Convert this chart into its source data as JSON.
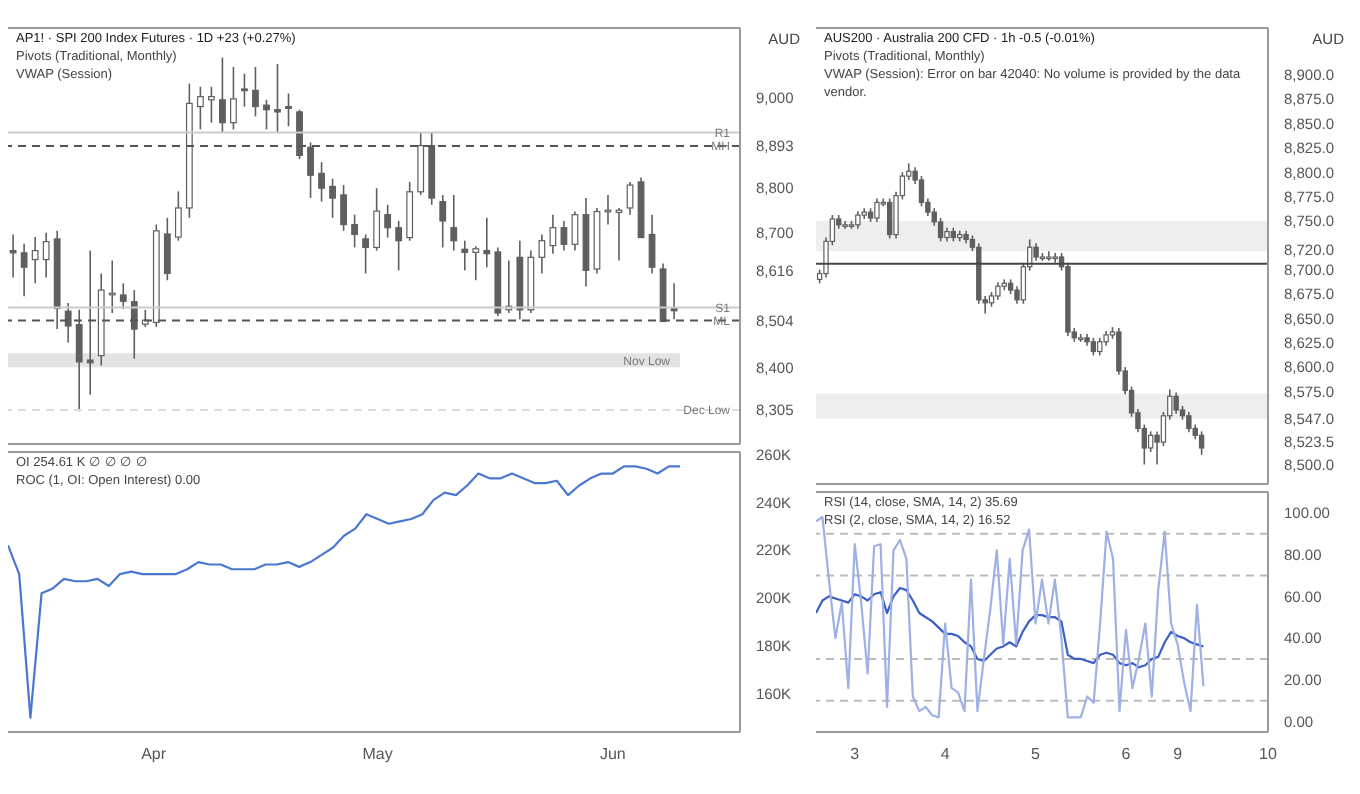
{
  "chart_data": [
    {
      "type": "candlestick",
      "title": "AP1! · SPI 200 Index Futures · 1D  +23 (+0.27%)",
      "annotations": [
        "Pivots (Traditional, Monthly)",
        "VWAP (Session)"
      ],
      "ylabel": "AUD",
      "color": "#5f5f5f",
      "tick_labels": "y",
      "categories": [
        null,
        null,
        null,
        null,
        null,
        null,
        null,
        null,
        null,
        null,
        null,
        null,
        null,
        null,
        null,
        null,
        null,
        null,
        null,
        null,
        null,
        null,
        null,
        null,
        null,
        null,
        null,
        null,
        null,
        null,
        null,
        null,
        null,
        null,
        null,
        null,
        null,
        null,
        null,
        null,
        null,
        null,
        null,
        null,
        null,
        null,
        null,
        null,
        null,
        null,
        null,
        null,
        null,
        null,
        null,
        null,
        null,
        null,
        null,
        null,
        null
      ],
      "ohlc": [
        [
          8660,
          8696,
          8600,
          8655
        ],
        [
          8655,
          8675,
          8558,
          8623
        ],
        [
          8640,
          8690,
          8587,
          8660
        ],
        [
          8640,
          8700,
          8600,
          8680
        ],
        [
          8686,
          8704,
          8485,
          8531
        ],
        [
          8525,
          8543,
          8455,
          8492
        ],
        [
          8495,
          8528,
          8302,
          8412
        ],
        [
          8416,
          8660,
          8339,
          8410
        ],
        [
          8426,
          8609,
          8404,
          8572
        ],
        [
          8562,
          8638,
          8521,
          8565
        ],
        [
          8561,
          8587,
          8530,
          8547
        ],
        [
          8546,
          8572,
          8419,
          8485
        ],
        [
          8496,
          8528,
          8490,
          8505
        ],
        [
          8500,
          8718,
          8490,
          8704
        ],
        [
          8697,
          8733,
          8594,
          8609
        ],
        [
          8690,
          8792,
          8682,
          8755
        ],
        [
          8755,
          9032,
          8733,
          8988
        ],
        [
          8981,
          9025,
          8930,
          9003
        ],
        [
          8996,
          9025,
          8945,
          9003
        ],
        [
          8996,
          9090,
          8923,
          8945
        ],
        [
          8945,
          9069,
          8930,
          8998
        ],
        [
          9020,
          9054,
          8981,
          9017
        ],
        [
          9017,
          9069,
          8959,
          8981
        ],
        [
          8984,
          8996,
          8930,
          8974
        ],
        [
          8974,
          9076,
          8923,
          8969
        ],
        [
          8981,
          9010,
          8937,
          8977
        ],
        [
          8969,
          8974,
          8864,
          8872
        ],
        [
          8890,
          8901,
          8777,
          8828
        ],
        [
          8832,
          8857,
          8769,
          8799
        ],
        [
          8803,
          8820,
          8733,
          8777
        ],
        [
          8784,
          8806,
          8704,
          8718
        ],
        [
          8718,
          8740,
          8667,
          8696
        ],
        [
          8686,
          8696,
          8609,
          8667
        ],
        [
          8667,
          8799,
          8660,
          8748
        ],
        [
          8740,
          8762,
          8689,
          8711
        ],
        [
          8711,
          8726,
          8616,
          8682
        ],
        [
          8689,
          8813,
          8682,
          8791
        ],
        [
          8791,
          8923,
          8784,
          8894
        ],
        [
          8894,
          8923,
          8762,
          8777
        ],
        [
          8769,
          8784,
          8667,
          8726
        ],
        [
          8711,
          8784,
          8660,
          8682
        ],
        [
          8663,
          8682,
          8616,
          8656
        ],
        [
          8656,
          8670,
          8594,
          8664
        ],
        [
          8660,
          8733,
          8623,
          8653
        ],
        [
          8657,
          8667,
          8514,
          8521
        ],
        [
          8528,
          8638,
          8521,
          8536
        ],
        [
          8645,
          8682,
          8507,
          8528
        ],
        [
          8528,
          8660,
          8521,
          8645
        ],
        [
          8645,
          8696,
          8609,
          8682
        ],
        [
          8671,
          8740,
          8653,
          8711
        ],
        [
          8711,
          8726,
          8660,
          8674
        ],
        [
          8674,
          8747,
          8660,
          8740
        ],
        [
          8740,
          8777,
          8580,
          8616
        ],
        [
          8619,
          8755,
          8609,
          8747
        ],
        [
          8747,
          8784,
          8718,
          8750
        ],
        [
          8745,
          8755,
          8638,
          8750
        ],
        [
          8755,
          8813,
          8740,
          8806
        ],
        [
          8813,
          8823,
          8689,
          8689
        ],
        [
          8696,
          8740,
          8609,
          8623
        ],
        [
          8619,
          8631,
          8502,
          8502
        ],
        [
          8531,
          8587,
          8507,
          8526
        ]
      ],
      "ylim": [
        8229,
        9156
      ],
      "yticks": [
        {
          "value": 8305,
          "label": "8,305"
        },
        {
          "value": 8400,
          "label": "8,400"
        },
        {
          "value": 8504,
          "label": "8,504"
        },
        {
          "value": 8616,
          "label": "8,616"
        },
        {
          "value": 8700,
          "label": "8,700"
        },
        {
          "value": 8800,
          "label": "8,800"
        },
        {
          "value": 8893,
          "label": "8,893"
        },
        {
          "value": 9000,
          "label": "9,000"
        }
      ],
      "ref_lines": [
        {
          "axis": "y",
          "value": 8923,
          "label": "R1",
          "color": "#cccccc",
          "line_style": "solid"
        },
        {
          "axis": "y",
          "value": 8893,
          "label": "MH",
          "color": "#555555",
          "line_style": "dashed"
        },
        {
          "axis": "y",
          "value": 8533,
          "label": "S1",
          "color": "#cccccc",
          "line_style": "solid"
        },
        {
          "axis": "y",
          "value": 8504,
          "label": "ML",
          "color": "#555555",
          "line_style": "dashed"
        },
        {
          "axis": "y",
          "value": 8305,
          "label": "Dec Low",
          "color": "#dddddd",
          "line_style": "dashed"
        }
      ],
      "bands": [
        {
          "axis": "y",
          "from": 8400,
          "to": 8431,
          "label": "Nov Low",
          "color": "#e3e3e3"
        }
      ]
    },
    {
      "type": "line",
      "annotations": [
        "OI 254.61 K ∅ ∅ ∅ ∅",
        "ROC (1, OI: Open Interest) 0.00"
      ],
      "categories": [
        null,
        null,
        null,
        null,
        null,
        null,
        null,
        null,
        null,
        null,
        null,
        null,
        null,
        "Apr",
        null,
        null,
        null,
        null,
        null,
        null,
        null,
        null,
        null,
        null,
        null,
        null,
        null,
        null,
        null,
        null,
        null,
        null,
        null,
        "May",
        null,
        null,
        null,
        null,
        null,
        null,
        null,
        null,
        null,
        null,
        null,
        null,
        null,
        null,
        null,
        null,
        null,
        null,
        null,
        null,
        "Jun",
        null,
        null,
        null,
        null,
        null,
        null
      ],
      "series": [
        {
          "color": "#4a78d0",
          "values": [
            222,
            210,
            150,
            202,
            204,
            208,
            207,
            207,
            208,
            205,
            210,
            211,
            210,
            210,
            210,
            210,
            212,
            215,
            214,
            214,
            212,
            212,
            212,
            214,
            214,
            215,
            213,
            215,
            218,
            221,
            226,
            229,
            235,
            233,
            231,
            232,
            233,
            235,
            241,
            244,
            243,
            247,
            252,
            250,
            250,
            252,
            250,
            248,
            248,
            249,
            243,
            247,
            250,
            252,
            252,
            255,
            255,
            254,
            252,
            255,
            255
          ]
        }
      ],
      "ylim": [
        144,
        261
      ],
      "yticks": [
        {
          "value": 160,
          "label": "160K"
        },
        {
          "value": 180,
          "label": "180K"
        },
        {
          "value": 200,
          "label": "200K"
        },
        {
          "value": 220,
          "label": "220K"
        },
        {
          "value": 240,
          "label": "240K"
        },
        {
          "value": 260,
          "label": "260K"
        }
      ],
      "marker": "none",
      "line_style": "solid"
    },
    {
      "type": "candlestick",
      "title": "AUS200 · Australia 200 CFD · 1h  -0.5 (-0.01%)",
      "annotations": [
        "Pivots (Traditional, Monthly)",
        "VWAP (Session): Error on bar 42040: No volume is provided by the data vendor."
      ],
      "ylabel": "AUD",
      "color": "#5f5f5f",
      "tick_labels": "y",
      "categories": [
        null,
        null,
        null,
        null,
        null,
        null,
        null,
        null,
        null,
        null,
        null,
        null,
        null,
        null,
        null,
        null,
        null,
        null,
        null,
        null,
        null,
        null,
        null,
        null,
        null,
        null,
        null,
        null,
        null,
        null,
        null,
        null,
        null,
        null,
        null,
        null,
        null,
        null,
        null,
        null,
        null,
        null,
        null,
        null,
        null,
        null,
        null,
        null,
        null,
        null,
        null,
        null,
        null,
        null,
        null,
        null,
        null,
        null,
        null,
        null,
        null,
        null,
        null,
        null,
        null,
        null,
        null,
        null,
        null,
        null,
        null
      ],
      "ohlc": [
        [
          8690,
          8700,
          8686,
          8696
        ],
        [
          8696,
          8733,
          8692,
          8729
        ],
        [
          8729,
          8756,
          8725,
          8752
        ],
        [
          8752,
          8756,
          8742,
          8746
        ],
        [
          8746,
          8750,
          8742,
          8746
        ],
        [
          8746,
          8750,
          8742,
          8746
        ],
        [
          8746,
          8760,
          8742,
          8756
        ],
        [
          8756,
          8763,
          8752,
          8759
        ],
        [
          8759,
          8763,
          8749,
          8753
        ],
        [
          8753,
          8773,
          8749,
          8769
        ],
        [
          8769,
          8773,
          8765,
          8769
        ],
        [
          8769,
          8773,
          8732,
          8736
        ],
        [
          8736,
          8780,
          8732,
          8776
        ],
        [
          8776,
          8800,
          8772,
          8796
        ],
        [
          8796,
          8809,
          8792,
          8801
        ],
        [
          8801,
          8805,
          8788,
          8792
        ],
        [
          8792,
          8796,
          8765,
          8769
        ],
        [
          8769,
          8773,
          8755,
          8759
        ],
        [
          8759,
          8763,
          8745,
          8749
        ],
        [
          8749,
          8753,
          8729,
          8733
        ],
        [
          8733,
          8743,
          8729,
          8739
        ],
        [
          8739,
          8743,
          8729,
          8733
        ],
        [
          8733,
          8740,
          8729,
          8736
        ],
        [
          8736,
          8740,
          8727,
          8731
        ],
        [
          8731,
          8735,
          8719,
          8723
        ],
        [
          8723,
          8727,
          8665,
          8669
        ],
        [
          8669,
          8673,
          8655,
          8666
        ],
        [
          8666,
          8677,
          8662,
          8673
        ],
        [
          8673,
          8687,
          8669,
          8683
        ],
        [
          8683,
          8690,
          8679,
          8686
        ],
        [
          8686,
          8690,
          8675,
          8679
        ],
        [
          8679,
          8683,
          8665,
          8669
        ],
        [
          8669,
          8707,
          8665,
          8703
        ],
        [
          8703,
          8731,
          8699,
          8723
        ],
        [
          8723,
          8727,
          8709,
          8713
        ],
        [
          8713,
          8717,
          8709,
          8713
        ],
        [
          8713,
          8719,
          8709,
          8713
        ],
        [
          8713,
          8717,
          8707,
          8713
        ],
        [
          8713,
          8717,
          8699,
          8703
        ],
        [
          8703,
          8707,
          8632,
          8636
        ],
        [
          8636,
          8640,
          8626,
          8630
        ],
        [
          8630,
          8634,
          8626,
          8630
        ],
        [
          8630,
          8634,
          8622,
          8626
        ],
        [
          8626,
          8630,
          8612,
          8616
        ],
        [
          8616,
          8630,
          8612,
          8626
        ],
        [
          8626,
          8637,
          8622,
          8633
        ],
        [
          8633,
          8641,
          8629,
          8636
        ],
        [
          8636,
          8640,
          8592,
          8596
        ],
        [
          8596,
          8600,
          8572,
          8576
        ],
        [
          8576,
          8580,
          8549,
          8553
        ],
        [
          8553,
          8557,
          8533,
          8537
        ],
        [
          8537,
          8541,
          8500,
          8517
        ],
        [
          8517,
          8534,
          8513,
          8530
        ],
        [
          8530,
          8534,
          8500,
          8523
        ],
        [
          8523,
          8554,
          8519,
          8550
        ],
        [
          8550,
          8577,
          8546,
          8570
        ],
        [
          8570,
          8574,
          8552,
          8556
        ],
        [
          8556,
          8560,
          8546,
          8550
        ],
        [
          8550,
          8554,
          8533,
          8537
        ],
        [
          8537,
          8541,
          8526,
          8530
        ],
        [
          8530,
          8534,
          8510,
          8517
        ],
        null,
        null,
        null,
        null,
        null,
        null,
        null,
        null,
        null,
        null
      ],
      "ylim": [
        8480,
        8948
      ],
      "yticks": [
        {
          "value": 8500,
          "label": "8,500.0"
        },
        {
          "value": 8523.5,
          "label": "8,523.5"
        },
        {
          "value": 8547,
          "label": "8,547.0"
        },
        {
          "value": 8575,
          "label": "8,575.0"
        },
        {
          "value": 8600,
          "label": "8,600.0"
        },
        {
          "value": 8625,
          "label": "8,625.0"
        },
        {
          "value": 8650,
          "label": "8,650.0"
        },
        {
          "value": 8675,
          "label": "8,675.0"
        },
        {
          "value": 8700,
          "label": "8,700.0"
        },
        {
          "value": 8720,
          "label": "8,720.0"
        },
        {
          "value": 8750,
          "label": "8,750.0"
        },
        {
          "value": 8775,
          "label": "8,775.0"
        },
        {
          "value": 8800,
          "label": "8,800.0"
        },
        {
          "value": 8825,
          "label": "8,825.0"
        },
        {
          "value": 8850,
          "label": "8,850.0"
        },
        {
          "value": 8875,
          "label": "8,875.0"
        },
        {
          "value": 8900,
          "label": "8,900.0"
        }
      ],
      "ref_lines": [
        {
          "axis": "y",
          "value": 8706,
          "color": "#444444",
          "line_style": "solid"
        }
      ],
      "bands": [
        {
          "axis": "y",
          "from": 8719,
          "to": 8750,
          "color": "#eeeeee"
        },
        {
          "axis": "y",
          "from": 8547,
          "to": 8573,
          "color": "#eeeeee"
        }
      ]
    },
    {
      "type": "line",
      "annotations": [
        "RSI (14, close, SMA, 14, 2) 35.69",
        "RSI (2, close, SMA, 14, 2) 16.52"
      ],
      "categories": [
        null,
        null,
        null,
        null,
        null,
        null,
        "3",
        null,
        null,
        null,
        null,
        null,
        null,
        null,
        null,
        null,
        null,
        null,
        null,
        null,
        "4",
        null,
        null,
        null,
        null,
        null,
        null,
        null,
        null,
        null,
        null,
        null,
        null,
        null,
        "5",
        null,
        null,
        null,
        null,
        null,
        null,
        null,
        null,
        null,
        null,
        null,
        null,
        null,
        "6",
        null,
        null,
        null,
        null,
        null,
        null,
        null,
        "9",
        null,
        null,
        null,
        null,
        null,
        null,
        null,
        null,
        null,
        null,
        null,
        null,
        null,
        "10"
      ],
      "series": [
        {
          "color": "#3c5fc4",
          "values": [
            52,
            58,
            60,
            59,
            58,
            57,
            61,
            60,
            58,
            61,
            62,
            52,
            60,
            64,
            63,
            58,
            52,
            50,
            48,
            45,
            42,
            42,
            41,
            38,
            36,
            30,
            29,
            32,
            35,
            36,
            38,
            36,
            43,
            48,
            51,
            51,
            50,
            50,
            48,
            32,
            30,
            30,
            29,
            28,
            32,
            33,
            32,
            28,
            27,
            28,
            26,
            27,
            30,
            31,
            38,
            43,
            41,
            40,
            38,
            37,
            36,
            null,
            null,
            null,
            null,
            null,
            null,
            null,
            null,
            null,
            null
          ]
        },
        {
          "color": "#9fb0e4",
          "values": [
            96,
            98,
            68,
            40,
            57,
            16,
            85,
            57,
            23,
            84,
            85,
            7,
            82,
            87,
            78,
            12,
            5,
            7,
            3,
            2,
            47,
            16,
            14,
            5,
            68,
            5,
            30,
            54,
            82,
            37,
            78,
            37,
            82,
            92,
            47,
            68,
            47,
            68,
            40,
            2,
            2,
            2,
            12,
            9,
            47,
            91,
            78,
            5,
            44,
            16,
            30,
            47,
            12,
            63,
            91,
            47,
            37,
            19,
            5,
            56,
            17,
            null,
            null,
            null,
            null,
            null,
            null,
            null,
            null,
            null,
            null
          ]
        }
      ],
      "ylim": [
        -5,
        110
      ],
      "yticks": [
        {
          "value": 0,
          "label": "0.00"
        },
        {
          "value": 20,
          "label": "20.00"
        },
        {
          "value": 40,
          "label": "40.00"
        },
        {
          "value": 60,
          "label": "60.00"
        },
        {
          "value": 80,
          "label": "80.00"
        },
        {
          "value": 100,
          "label": "100.00"
        }
      ],
      "marker": "none",
      "line_style": "solid",
      "ref_lines": [
        {
          "axis": "y",
          "value": 90,
          "color": "#bbbbbb",
          "line_style": "dashed"
        },
        {
          "axis": "y",
          "value": 70,
          "color": "#bbbbbb",
          "line_style": "dashed"
        },
        {
          "axis": "y",
          "value": 30,
          "color": "#bbbbbb",
          "line_style": "dashed"
        },
        {
          "axis": "y",
          "value": 10,
          "color": "#bbbbbb",
          "line_style": "dashed"
        }
      ]
    }
  ]
}
